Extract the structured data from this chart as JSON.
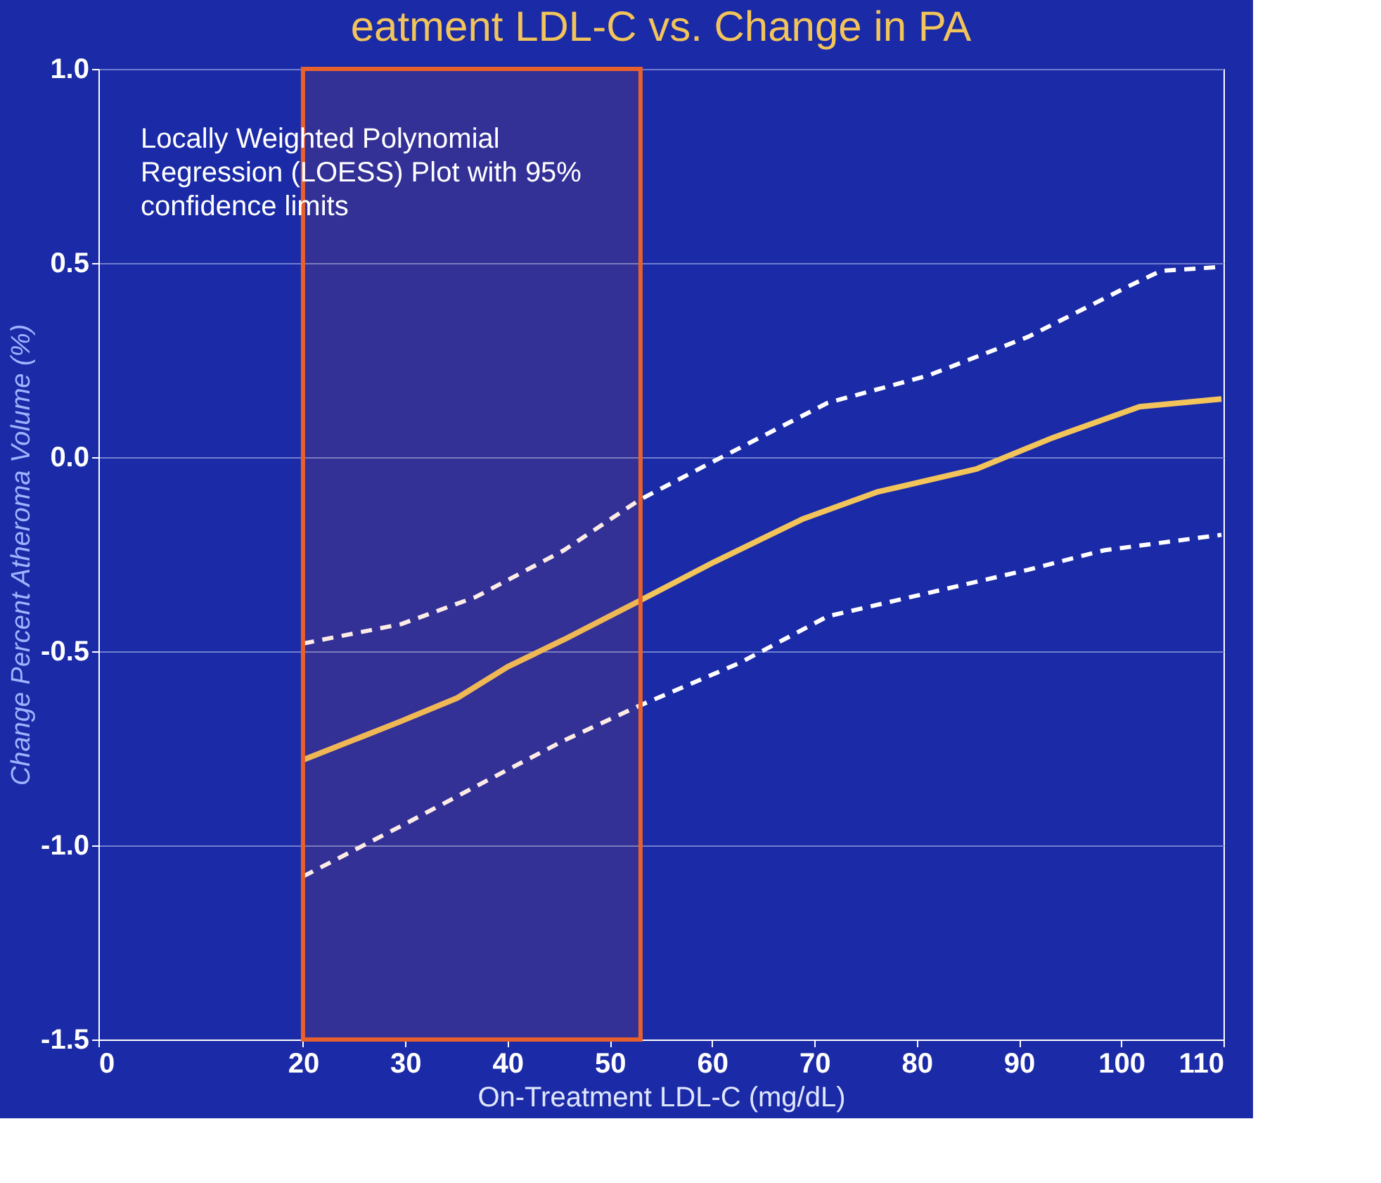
{
  "chart_data": {
    "type": "line",
    "title": "eatment LDL-C vs. Change in PA",
    "xlabel": "On-Treatment LDL-C (mg/dL)",
    "ylabel": "Change Percent Atheroma Volume (%)",
    "annotations": [
      "Locally Weighted Polynomial Regression (LOESS) Plot with 95% confidence limits"
    ],
    "xlim": [
      0,
      110
    ],
    "xticks": [
      0,
      20,
      30,
      40,
      50,
      60,
      70,
      80,
      90,
      100,
      110
    ],
    "ylim": [
      -1.5,
      1.0
    ],
    "yticks": [
      {
        "value": -1.5,
        "label": "-1.5"
      },
      {
        "value": -1.0,
        "label": "-1.0"
      },
      {
        "value": -0.5,
        "label": "-0.5"
      },
      {
        "value": 0,
        "label": "0.0"
      },
      {
        "value": 0.5,
        "label": "0.5"
      },
      {
        "value": 1.0,
        "label": "1.0"
      }
    ],
    "grid": "y",
    "marker": "none",
    "series": [
      {
        "color": "#f2c45a",
        "line_style": "solid",
        "x": [
          20,
          29.6,
          35.1,
          40,
          45.5,
          52.9,
          60.2,
          68.8,
          76.1,
          85.9,
          93.3,
          101.8,
          109.8
        ],
        "values": [
          -0.78,
          -0.68,
          -0.62,
          -0.54,
          -0.47,
          -0.37,
          -0.27,
          -0.16,
          -0.09,
          -0.03,
          0.05,
          0.13,
          0.15
        ]
      },
      {
        "color": "#ffffff",
        "line_style": "dashed",
        "x": [
          20,
          29.6,
          36.9,
          45.5,
          52.9,
          60.2,
          71.3,
          81.1,
          90.9,
          100.7,
          103.9,
          109.8
        ],
        "values": [
          -0.48,
          -0.43,
          -0.36,
          -0.24,
          -0.11,
          -0.01,
          0.14,
          0.21,
          0.31,
          0.44,
          0.48,
          0.49
        ]
      },
      {
        "color": "#ffffff",
        "line_style": "dashed",
        "x": [
          20,
          29.6,
          38.2,
          45.5,
          52.9,
          62.7,
          71.3,
          81.1,
          90.9,
          98.3,
          109.8
        ],
        "values": [
          -1.08,
          -0.95,
          -0.83,
          -0.73,
          -0.64,
          -0.53,
          -0.41,
          -0.35,
          -0.29,
          -0.24,
          -0.2
        ]
      }
    ],
    "bands": [
      {
        "axis": "x",
        "from": 20,
        "to": 53,
        "color": "#e8612c"
      }
    ]
  }
}
